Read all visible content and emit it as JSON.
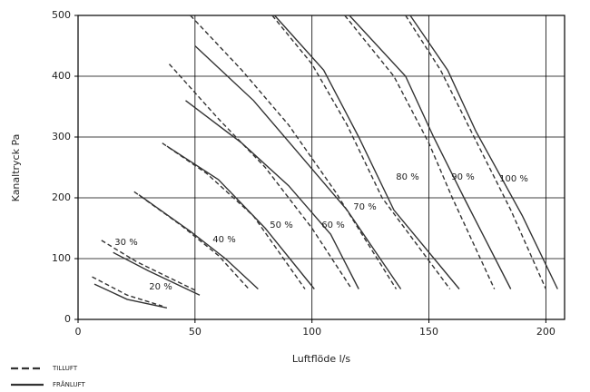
{
  "chart_data": {
    "type": "line",
    "x_label": "Luftflöde l/s",
    "y_label": "Kanaltryck Pa",
    "xlim": [
      0,
      208
    ],
    "ylim": [
      0,
      500
    ],
    "xticks": [
      0,
      50,
      100,
      150,
      200
    ],
    "yticks": [
      0,
      100,
      200,
      300,
      400,
      500
    ],
    "grid": true,
    "color": "#333333",
    "legend": [
      {
        "name": "TILLUFT",
        "style": "dashed"
      },
      {
        "name": "FRÅNLUFT",
        "style": "solid"
      }
    ],
    "curves": [
      {
        "label": "20 %",
        "lines": [
          {
            "x": [
              6,
              21,
              36
            ],
            "values": [
              70,
              40,
              22
            ]
          },
          {
            "x": [
              7,
              21,
              38
            ],
            "values": [
              58,
              33,
              19
            ]
          }
        ]
      },
      {
        "label": "30 %",
        "lines": [
          {
            "x": [
              10,
              25,
              50
            ],
            "values": [
              130,
              95,
              48
            ]
          },
          {
            "x": [
              15,
              30,
              52
            ],
            "values": [
              110,
              80,
              40
            ]
          }
        ]
      },
      {
        "label": "40 %",
        "lines": [
          {
            "x": [
              24,
              44,
              60,
              73
            ],
            "values": [
              210,
              155,
              105,
              50
            ]
          },
          {
            "x": [
              26,
              48,
              63,
              77
            ],
            "values": [
              205,
              145,
              100,
              50
            ]
          }
        ]
      },
      {
        "label": "50 %",
        "lines": [
          {
            "x": [
              36,
              55,
              75,
              97
            ],
            "values": [
              290,
              240,
              170,
              50
            ]
          },
          {
            "x": [
              38,
              60,
              80,
              101
            ],
            "values": [
              285,
              230,
              150,
              50
            ]
          }
        ]
      },
      {
        "label": "60 %",
        "lines": [
          {
            "x": [
              39,
              60,
              80,
              100,
              117
            ],
            "values": [
              420,
              330,
              250,
              150,
              50
            ]
          },
          {
            "x": [
              46,
              70,
              90,
              108,
              120
            ],
            "values": [
              360,
              290,
              220,
              140,
              50
            ]
          }
        ]
      },
      {
        "label": "70 %",
        "lines": [
          {
            "x": [
              48,
              70,
              90,
              110,
              136
            ],
            "values": [
              500,
              410,
              320,
              210,
              50
            ]
          },
          {
            "x": [
              50,
              75,
              95,
              115,
              138
            ],
            "values": [
              450,
              360,
              270,
              180,
              50
            ]
          }
        ]
      },
      {
        "label": "80 %",
        "lines": [
          {
            "x": [
              83,
              100,
              115,
              130,
              159
            ],
            "values": [
              500,
              420,
              320,
              200,
              50
            ]
          },
          {
            "x": [
              84,
              105,
              120,
              135,
              163
            ],
            "values": [
              500,
              410,
              300,
              180,
              50
            ]
          }
        ]
      },
      {
        "label": "90 %",
        "lines": [
          {
            "x": [
              114,
              135,
              150,
              160,
              178
            ],
            "values": [
              500,
              400,
              290,
              200,
              50
            ]
          },
          {
            "x": [
              116,
              140,
              152,
              165,
              185
            ],
            "values": [
              500,
              400,
              300,
              200,
              50
            ]
          }
        ]
      },
      {
        "label": "100 %",
        "lines": [
          {
            "x": [
              140,
              155,
              168,
              185,
              200
            ],
            "values": [
              500,
              410,
              310,
              180,
              50
            ]
          },
          {
            "x": [
              142,
              158,
              170,
              190,
              205
            ],
            "values": [
              500,
              410,
              310,
              170,
              50
            ]
          }
        ]
      }
    ]
  }
}
